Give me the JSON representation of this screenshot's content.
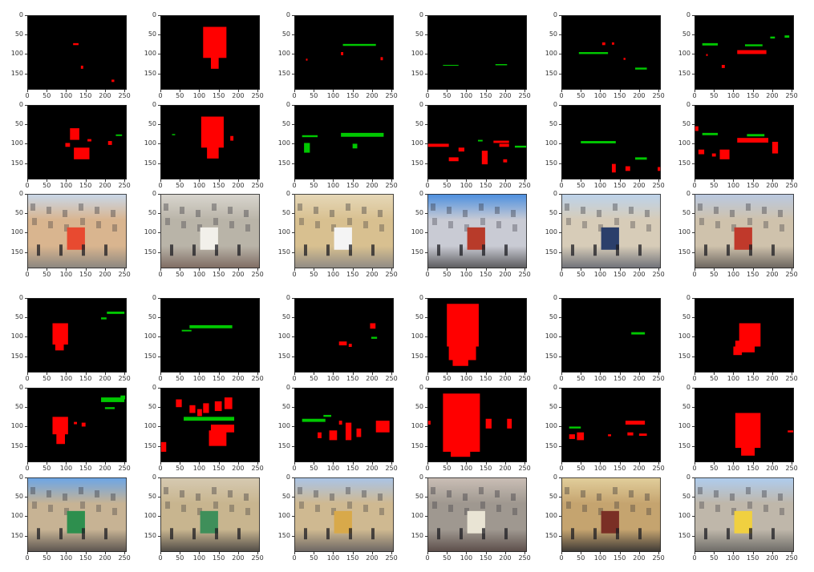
{
  "axes": {
    "y_ticks": [
      "0",
      "50",
      "100",
      "150"
    ],
    "x_ticks": [
      "0",
      "50",
      "100",
      "150",
      "200",
      "250"
    ]
  },
  "colors": {
    "mask_background": "#000000",
    "class_red": "#ff0000",
    "class_green": "#00c800"
  },
  "panels": [
    {
      "row": 0,
      "col": 0,
      "kind": "mask",
      "features": [
        {
          "c": "red",
          "x": 118,
          "y": 72,
          "w": 14,
          "h": 5
        },
        {
          "c": "red",
          "x": 138,
          "y": 130,
          "w": 6,
          "h": 8
        },
        {
          "c": "red",
          "x": 217,
          "y": 166,
          "w": 7,
          "h": 6
        }
      ]
    },
    {
      "row": 0,
      "col": 1,
      "kind": "mask",
      "features": [
        {
          "c": "red",
          "x": 110,
          "y": 30,
          "w": 60,
          "h": 80
        },
        {
          "c": "red",
          "x": 130,
          "y": 100,
          "w": 20,
          "h": 38
        }
      ]
    },
    {
      "row": 0,
      "col": 2,
      "kind": "mask",
      "features": [
        {
          "c": "green",
          "x": 125,
          "y": 74,
          "w": 85,
          "h": 5
        },
        {
          "c": "red",
          "x": 120,
          "y": 95,
          "w": 6,
          "h": 8
        },
        {
          "c": "red",
          "x": 222,
          "y": 108,
          "w": 6,
          "h": 8
        },
        {
          "c": "red",
          "x": 30,
          "y": 112,
          "w": 4,
          "h": 5
        }
      ]
    },
    {
      "row": 0,
      "col": 3,
      "kind": "mask",
      "features": [
        {
          "c": "green",
          "x": 175,
          "y": 126,
          "w": 30,
          "h": 3
        },
        {
          "c": "green",
          "x": 40,
          "y": 128,
          "w": 40,
          "h": 2
        }
      ]
    },
    {
      "row": 0,
      "col": 4,
      "kind": "mask",
      "features": [
        {
          "c": "green",
          "x": 45,
          "y": 95,
          "w": 75,
          "h": 5
        },
        {
          "c": "green",
          "x": 190,
          "y": 135,
          "w": 30,
          "h": 5
        },
        {
          "c": "red",
          "x": 105,
          "y": 70,
          "w": 8,
          "h": 7
        },
        {
          "c": "red",
          "x": 130,
          "y": 70,
          "w": 6,
          "h": 6
        },
        {
          "c": "red",
          "x": 160,
          "y": 110,
          "w": 5,
          "h": 5
        }
      ]
    },
    {
      "row": 0,
      "col": 5,
      "kind": "mask",
      "features": [
        {
          "c": "green",
          "x": 20,
          "y": 72,
          "w": 40,
          "h": 6
        },
        {
          "c": "green",
          "x": 130,
          "y": 75,
          "w": 45,
          "h": 5
        },
        {
          "c": "green",
          "x": 195,
          "y": 55,
          "w": 12,
          "h": 5
        },
        {
          "c": "green",
          "x": 232,
          "y": 52,
          "w": 12,
          "h": 6
        },
        {
          "c": "red",
          "x": 110,
          "y": 90,
          "w": 75,
          "h": 10
        },
        {
          "c": "red",
          "x": 70,
          "y": 128,
          "w": 8,
          "h": 8
        },
        {
          "c": "red",
          "x": 30,
          "y": 100,
          "w": 4,
          "h": 5
        }
      ]
    },
    {
      "row": 1,
      "col": 0,
      "kind": "mask",
      "features": [
        {
          "c": "red",
          "x": 110,
          "y": 60,
          "w": 24,
          "h": 30
        },
        {
          "c": "red",
          "x": 120,
          "y": 110,
          "w": 40,
          "h": 30
        },
        {
          "c": "red",
          "x": 98,
          "y": 98,
          "w": 12,
          "h": 10
        },
        {
          "c": "red",
          "x": 155,
          "y": 88,
          "w": 10,
          "h": 6
        },
        {
          "c": "red",
          "x": 208,
          "y": 93,
          "w": 10,
          "h": 10
        },
        {
          "c": "green",
          "x": 228,
          "y": 76,
          "w": 16,
          "h": 4
        }
      ]
    },
    {
      "row": 1,
      "col": 1,
      "kind": "mask",
      "features": [
        {
          "c": "red",
          "x": 105,
          "y": 30,
          "w": 58,
          "h": 80
        },
        {
          "c": "red",
          "x": 120,
          "y": 100,
          "w": 30,
          "h": 38
        },
        {
          "c": "red",
          "x": 180,
          "y": 80,
          "w": 8,
          "h": 12
        },
        {
          "c": "green",
          "x": 30,
          "y": 75,
          "w": 8,
          "h": 3
        }
      ]
    },
    {
      "row": 1,
      "col": 2,
      "kind": "mask",
      "features": [
        {
          "c": "green",
          "x": 120,
          "y": 72,
          "w": 110,
          "h": 10
        },
        {
          "c": "green",
          "x": 20,
          "y": 78,
          "w": 40,
          "h": 5
        },
        {
          "c": "green",
          "x": 25,
          "y": 98,
          "w": 15,
          "h": 25
        },
        {
          "c": "green",
          "x": 150,
          "y": 100,
          "w": 12,
          "h": 12
        }
      ]
    },
    {
      "row": 1,
      "col": 3,
      "kind": "mask",
      "features": [
        {
          "c": "red",
          "x": 0,
          "y": 100,
          "w": 55,
          "h": 8
        },
        {
          "c": "red",
          "x": 80,
          "y": 110,
          "w": 15,
          "h": 10
        },
        {
          "c": "red",
          "x": 140,
          "y": 118,
          "w": 15,
          "h": 35
        },
        {
          "c": "red",
          "x": 185,
          "y": 100,
          "w": 25,
          "h": 8
        },
        {
          "c": "red",
          "x": 55,
          "y": 135,
          "w": 25,
          "h": 10
        },
        {
          "c": "red",
          "x": 170,
          "y": 92,
          "w": 40,
          "h": 6
        },
        {
          "c": "red",
          "x": 195,
          "y": 140,
          "w": 10,
          "h": 8
        },
        {
          "c": "green",
          "x": 225,
          "y": 105,
          "w": 30,
          "h": 5
        },
        {
          "c": "green",
          "x": 130,
          "y": 90,
          "w": 12,
          "h": 4
        }
      ]
    },
    {
      "row": 1,
      "col": 4,
      "kind": "mask",
      "features": [
        {
          "c": "green",
          "x": 50,
          "y": 93,
          "w": 90,
          "h": 6
        },
        {
          "c": "green",
          "x": 190,
          "y": 135,
          "w": 30,
          "h": 6
        },
        {
          "c": "red",
          "x": 130,
          "y": 152,
          "w": 10,
          "h": 22
        },
        {
          "c": "red",
          "x": 165,
          "y": 158,
          "w": 12,
          "h": 12
        },
        {
          "c": "red",
          "x": 248,
          "y": 160,
          "w": 8,
          "h": 10
        }
      ]
    },
    {
      "row": 1,
      "col": 5,
      "kind": "mask",
      "features": [
        {
          "c": "green",
          "x": 20,
          "y": 72,
          "w": 40,
          "h": 6
        },
        {
          "c": "green",
          "x": 135,
          "y": 75,
          "w": 45,
          "h": 6
        },
        {
          "c": "red",
          "x": 110,
          "y": 85,
          "w": 80,
          "h": 12
        },
        {
          "c": "red",
          "x": 0,
          "y": 55,
          "w": 10,
          "h": 12
        },
        {
          "c": "red",
          "x": 65,
          "y": 115,
          "w": 25,
          "h": 25
        },
        {
          "c": "red",
          "x": 10,
          "y": 115,
          "w": 15,
          "h": 12
        },
        {
          "c": "red",
          "x": 45,
          "y": 125,
          "w": 10,
          "h": 8
        },
        {
          "c": "red",
          "x": 200,
          "y": 95,
          "w": 15,
          "h": 30
        }
      ]
    },
    {
      "row": 2,
      "col": 0,
      "kind": "photo",
      "sky": "#c8d8ea",
      "mid": "#d9b58f",
      "ground": "#8a8680",
      "accent": "#e84a30"
    },
    {
      "row": 2,
      "col": 1,
      "kind": "photo",
      "sky": "#d9d6cf",
      "mid": "#b9b4a8",
      "ground": "#7e6b62",
      "accent": "#f2f0ea"
    },
    {
      "row": 2,
      "col": 2,
      "kind": "photo",
      "sky": "#e6d8b8",
      "mid": "#d8c090",
      "ground": "#8f8a84",
      "accent": "#f4f4f4"
    },
    {
      "row": 2,
      "col": 3,
      "kind": "photo",
      "sky": "#4a8ee0",
      "mid": "#c9cbd4",
      "ground": "#5a5a5c",
      "accent": "#b83b2a"
    },
    {
      "row": 2,
      "col": 4,
      "kind": "photo",
      "sky": "#bcd3ec",
      "mid": "#d7ccb8",
      "ground": "#6e7078",
      "accent": "#2b3f6b"
    },
    {
      "row": 2,
      "col": 5,
      "kind": "photo",
      "sky": "#b9c9e2",
      "mid": "#cfc2ac",
      "ground": "#6a645e",
      "accent": "#c0392b"
    },
    {
      "row": 3,
      "col": 0,
      "kind": "mask",
      "features": [
        {
          "c": "red",
          "x": 65,
          "y": 65,
          "w": 40,
          "h": 55
        },
        {
          "c": "red",
          "x": 72,
          "y": 115,
          "w": 22,
          "h": 20
        },
        {
          "c": "green",
          "x": 205,
          "y": 35,
          "w": 45,
          "h": 6
        },
        {
          "c": "green",
          "x": 190,
          "y": 50,
          "w": 14,
          "h": 5
        }
      ]
    },
    {
      "row": 3,
      "col": 1,
      "kind": "mask",
      "features": [
        {
          "c": "green",
          "x": 75,
          "y": 70,
          "w": 110,
          "h": 8
        },
        {
          "c": "green",
          "x": 55,
          "y": 82,
          "w": 25,
          "h": 4
        }
      ]
    },
    {
      "row": 3,
      "col": 2,
      "kind": "mask",
      "features": [
        {
          "c": "red",
          "x": 195,
          "y": 65,
          "w": 14,
          "h": 14
        },
        {
          "c": "red",
          "x": 115,
          "y": 112,
          "w": 20,
          "h": 10
        },
        {
          "c": "red",
          "x": 140,
          "y": 118,
          "w": 8,
          "h": 8
        },
        {
          "c": "green",
          "x": 198,
          "y": 100,
          "w": 15,
          "h": 5
        }
      ]
    },
    {
      "row": 3,
      "col": 3,
      "kind": "mask",
      "features": [
        {
          "c": "red",
          "x": 50,
          "y": 15,
          "w": 82,
          "h": 110
        },
        {
          "c": "red",
          "x": 55,
          "y": 120,
          "w": 70,
          "h": 40
        },
        {
          "c": "red",
          "x": 65,
          "y": 155,
          "w": 40,
          "h": 20
        }
      ]
    },
    {
      "row": 3,
      "col": 4,
      "kind": "mask",
      "features": [
        {
          "c": "green",
          "x": 180,
          "y": 88,
          "w": 35,
          "h": 6
        }
      ]
    },
    {
      "row": 3,
      "col": 5,
      "kind": "mask",
      "features": [
        {
          "c": "red",
          "x": 115,
          "y": 65,
          "w": 55,
          "h": 60
        },
        {
          "c": "red",
          "x": 105,
          "y": 110,
          "w": 50,
          "h": 30
        },
        {
          "c": "red",
          "x": 100,
          "y": 125,
          "w": 22,
          "h": 22
        }
      ]
    },
    {
      "row": 4,
      "col": 0,
      "kind": "mask",
      "features": [
        {
          "c": "red",
          "x": 65,
          "y": 75,
          "w": 40,
          "h": 45
        },
        {
          "c": "red",
          "x": 75,
          "y": 115,
          "w": 22,
          "h": 30
        },
        {
          "c": "red",
          "x": 140,
          "y": 90,
          "w": 10,
          "h": 10
        },
        {
          "c": "red",
          "x": 120,
          "y": 88,
          "w": 8,
          "h": 6
        },
        {
          "c": "green",
          "x": 190,
          "y": 25,
          "w": 60,
          "h": 12
        },
        {
          "c": "green",
          "x": 200,
          "y": 50,
          "w": 25,
          "h": 5
        },
        {
          "c": "green",
          "x": 240,
          "y": 20,
          "w": 12,
          "h": 10
        }
      ]
    },
    {
      "row": 4,
      "col": 1,
      "kind": "mask",
      "features": [
        {
          "c": "red",
          "x": 40,
          "y": 30,
          "w": 15,
          "h": 20
        },
        {
          "c": "red",
          "x": 75,
          "y": 45,
          "w": 15,
          "h": 20
        },
        {
          "c": "red",
          "x": 110,
          "y": 40,
          "w": 15,
          "h": 25
        },
        {
          "c": "red",
          "x": 140,
          "y": 35,
          "w": 18,
          "h": 25
        },
        {
          "c": "red",
          "x": 165,
          "y": 25,
          "w": 20,
          "h": 30
        },
        {
          "c": "red",
          "x": 130,
          "y": 95,
          "w": 60,
          "h": 20
        },
        {
          "c": "red",
          "x": 125,
          "y": 110,
          "w": 45,
          "h": 40
        },
        {
          "c": "red",
          "x": 0,
          "y": 140,
          "w": 15,
          "h": 25
        },
        {
          "c": "red",
          "x": 95,
          "y": 55,
          "w": 12,
          "h": 18
        },
        {
          "c": "green",
          "x": 60,
          "y": 75,
          "w": 130,
          "h": 10
        }
      ]
    },
    {
      "row": 4,
      "col": 2,
      "kind": "mask",
      "features": [
        {
          "c": "red",
          "x": 210,
          "y": 85,
          "w": 35,
          "h": 30
        },
        {
          "c": "red",
          "x": 132,
          "y": 90,
          "w": 15,
          "h": 45
        },
        {
          "c": "red",
          "x": 90,
          "y": 110,
          "w": 20,
          "h": 25
        },
        {
          "c": "red",
          "x": 60,
          "y": 115,
          "w": 10,
          "h": 15
        },
        {
          "c": "red",
          "x": 160,
          "y": 105,
          "w": 12,
          "h": 22
        },
        {
          "c": "red",
          "x": 115,
          "y": 85,
          "w": 8,
          "h": 10
        },
        {
          "c": "green",
          "x": 20,
          "y": 80,
          "w": 60,
          "h": 8
        },
        {
          "c": "green",
          "x": 75,
          "y": 70,
          "w": 20,
          "h": 5
        }
      ]
    },
    {
      "row": 4,
      "col": 3,
      "kind": "mask",
      "features": [
        {
          "c": "red",
          "x": 40,
          "y": 15,
          "w": 95,
          "h": 150
        },
        {
          "c": "red",
          "x": 60,
          "y": 150,
          "w": 50,
          "h": 28
        },
        {
          "c": "red",
          "x": 150,
          "y": 80,
          "w": 15,
          "h": 25
        },
        {
          "c": "red",
          "x": 205,
          "y": 80,
          "w": 12,
          "h": 25
        },
        {
          "c": "red",
          "x": 0,
          "y": 85,
          "w": 8,
          "h": 10
        }
      ]
    },
    {
      "row": 4,
      "col": 4,
      "kind": "mask",
      "features": [
        {
          "c": "red",
          "x": 40,
          "y": 115,
          "w": 18,
          "h": 20
        },
        {
          "c": "red",
          "x": 20,
          "y": 120,
          "w": 15,
          "h": 12
        },
        {
          "c": "red",
          "x": 165,
          "y": 85,
          "w": 50,
          "h": 10
        },
        {
          "c": "red",
          "x": 170,
          "y": 115,
          "w": 15,
          "h": 8
        },
        {
          "c": "red",
          "x": 200,
          "y": 118,
          "w": 20,
          "h": 6
        },
        {
          "c": "red",
          "x": 120,
          "y": 120,
          "w": 8,
          "h": 5
        },
        {
          "c": "green",
          "x": 20,
          "y": 100,
          "w": 30,
          "h": 5
        }
      ]
    },
    {
      "row": 4,
      "col": 5,
      "kind": "mask",
      "features": [
        {
          "c": "red",
          "x": 105,
          "y": 65,
          "w": 65,
          "h": 90
        },
        {
          "c": "red",
          "x": 120,
          "y": 145,
          "w": 35,
          "h": 30
        },
        {
          "c": "red",
          "x": 240,
          "y": 110,
          "w": 15,
          "h": 5
        }
      ]
    },
    {
      "row": 5,
      "col": 0,
      "kind": "photo",
      "sky": "#6aa5e8",
      "mid": "#c7b394",
      "ground": "#5a534e",
      "accent": "#2e8f4e"
    },
    {
      "row": 5,
      "col": 1,
      "kind": "photo",
      "sky": "#d6cab2",
      "mid": "#c8b58f",
      "ground": "#4f4a45",
      "accent": "#3f8f5a"
    },
    {
      "row": 5,
      "col": 2,
      "kind": "photo",
      "sky": "#a9c4e8",
      "mid": "#cfb991",
      "ground": "#6b6563",
      "accent": "#d8a94a"
    },
    {
      "row": 5,
      "col": 3,
      "kind": "photo",
      "sky": "#cbbfb6",
      "mid": "#9f9890",
      "ground": "#5b4d49",
      "accent": "#e9e4d4"
    },
    {
      "row": 5,
      "col": 4,
      "kind": "photo",
      "sky": "#e2cf9c",
      "mid": "#c5a46f",
      "ground": "#3c3835",
      "accent": "#7a2f25"
    },
    {
      "row": 5,
      "col": 5,
      "kind": "photo",
      "sky": "#aecdf0",
      "mid": "#bfb7aa",
      "ground": "#6c6a66",
      "accent": "#f0d040"
    }
  ]
}
